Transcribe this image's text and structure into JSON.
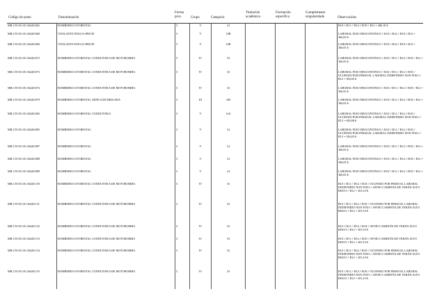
{
  "headers": {
    "codigo": "Código de posto",
    "denominacion": "Denominación",
    "forma": "Forma prov.",
    "grupo": "Grupo",
    "categoria": "Categoría",
    "titulacion": "Titulación académica",
    "formacion": "Formación específica",
    "complemento": "Complemento singularidade",
    "observacions": "Observacións"
  },
  "rows": [
    {
      "codigo": "MR.C59.50.101.36448.862",
      "denominacion": "BOMBEIRO/A FORESTAL",
      "forma": "C",
      "grupo": "V",
      "categoria": "14",
      "obs": "B10 // B11 // B14 // B18 // B12 = 486,18 €."
    },
    {
      "codigo": "MR.C59.50.101.36448.868",
      "denominacion": "VIXILANTE FIXO/A SPDCIF",
      "forma": "C",
      "grupo": "V",
      "categoria": "10B",
      "obs": "LABORAL FIXO-DESCONTINUO // B10 // B14 // B18 // B12 = 366,65 €."
    },
    {
      "codigo": "MR.C59.50.101.36448.869",
      "denominacion": "VIXILANTE FIXO/A SPDCIF",
      "forma": "C",
      "grupo": "V",
      "categoria": "10B",
      "obs": "LABORAL FIXO-DESCONTINUO // B10 // B14 // B18 // B12 = 366,65 €."
    },
    {
      "codigo": "MR.C59.50.101.36448.872",
      "denominacion": "BOMBEIRO/A FORESTAL CONDUTOR/A DE MOTOBOMBA",
      "forma": "C",
      "grupo": "IV",
      "categoria": "33",
      "obs": "LABORAL FIXO-DESCONTINUO // B10 // B11 // B14 // B18 // B12 = 366,65 €."
    },
    {
      "codigo": "MR.C59.50.101.36448.873",
      "denominacion": "BOMBEIRO/A FORESTAL CONDUTOR/A DE MOTOBOMBA",
      "forma": "C",
      "grupo": "IV",
      "categoria": "33",
      "obs": "LABORAL FIXO-DESCONTINUO // B10 // B11 // B14 // B18 // OCUPADO POR PERSOAL LABORAL INDEFINIDO NON FIXO // B12 = 384,65 €."
    },
    {
      "codigo": "MR.C59.50.101.36448.874",
      "denominacion": "BOMBEIRO/A FORESTAL CONDUTOR/A DE MOTOBOMBA",
      "forma": "C",
      "grupo": "IV",
      "categoria": "33",
      "obs": "LABORAL FIXO-DESCONTINUO // B10 // B11 // B14 // B18 // B12 = 366,65 €."
    },
    {
      "codigo": "MR.C59.50.101.36448.879",
      "denominacion": "BOMBEIRO/A FORESTAL XEFE/A DE BRIGADA",
      "forma": "C",
      "grupo": "III",
      "categoria": "100",
      "obs": "LABORAL FIXO-DESCONTINUO // B10 // B11 // B14 // B18 // B12 = 366,65 €."
    },
    {
      "codigo": "MR.C59.50.101.36448.882",
      "denominacion": "BOMBEIRO/A FORESTAL CONDUTOR/A",
      "forma": "C",
      "grupo": "V",
      "categoria": "14A",
      "obs": "LABORAL FIXO-DESCONTINUO // B10 // B11 // B14 // B18 // OCUPADO POR PERSOAL LABORAL INDEFINIDO NON FIXO // B12 = 469,68 €."
    },
    {
      "codigo": "MR.C59.50.101.36448.885",
      "denominacion": "BOMBEIRO/A FORESTAL",
      "forma": "C",
      "grupo": "V",
      "categoria": "14",
      "obs": "LABORAL FIXO-DESCONTINUO // B10 // B11 // B14 // B18 // OCUPADO POR PERSOAL LABORAL INDEFINIDO NON FIXO // B12 = 384,65 €."
    },
    {
      "codigo": "MR.C59.50.101.36448.887",
      "denominacion": "BOMBEIRO/A FORESTAL",
      "forma": "C",
      "grupo": "V",
      "categoria": "14",
      "obs": "LABORAL FIXO-DESCONTINUO // B10 // B11 // B14 // B18 // B12 = 366,65 €."
    },
    {
      "codigo": "MR.C59.50.101.36448.888",
      "denominacion": "BOMBEIRO/A FORESTAL",
      "forma": "C",
      "grupo": "V",
      "categoria": "14",
      "obs": "LABORAL FIXO-DESCONTINUO // B10 // B11 // B14 // B18 // B12 = 366,65 €."
    },
    {
      "codigo": "MR.C59.50.101.36448.889",
      "denominacion": "BOMBEIRO/A FORESTAL",
      "forma": "C",
      "grupo": "V",
      "categoria": "14",
      "obs": "LABORAL FIXO-DESCONTINUO // B10 // B11 // B14 // B18 // B12 = 366,65 €."
    },
    {
      "codigo": "MR.C59.50.101.36448.150",
      "denominacion": "BOMBEIRO/A FORESTAL CONDUTOR/A DE MOTOBOMBA",
      "forma": "C",
      "grupo": "IV",
      "categoria": "33",
      "obs": "B10 // B11 // B14 // B18 // OCUPADO POR PERSOAL LABORAL INDEFINIDO NON FIXO // APOIO CAMPAÑA DE VERÁN ALTO RISCO // B12 = 203,10 €."
    },
    {
      "codigo": "MR.C59.50.101.36448.151",
      "denominacion": "BOMBEIRO/A FORESTAL CONDUTOR/A DE MOTOBOMBA",
      "forma": "C",
      "grupo": "IV",
      "categoria": "33",
      "obs": "B10 // B11 // B14 // B18 // OCUPADO POR PERSOAL LABORAL INDEFINIDO NON FIXO // APOIO CAMPAÑA DE VERÁN ALTO RISCO // B12 = 203,10 €."
    },
    {
      "codigo": "MR.C59.50.101.36448.152",
      "denominacion": "BOMBEIRO/A FORESTAL CONDUTOR/A DE MOTOBOMBA",
      "forma": "C",
      "grupo": "IV",
      "categoria": "33",
      "obs": "B10 // B11 // B14 // B18 // APOIO CAMPAÑA DE VERÁN ALTO RISCO // B12 = 203,10 €."
    },
    {
      "codigo": "MR.C59.50.101.36448.153",
      "denominacion": "BOMBEIRO/A FORESTAL CONDUTOR/A DE MOTOBOMBA",
      "forma": "C",
      "grupo": "IV",
      "categoria": "33",
      "obs": "B10 // B11 // B14 // B18 // APOIO CAMPAÑA DE VERÁN ALTO RISCO // B12 = 203,10 €."
    },
    {
      "codigo": "MR.C59.50.101.36448.154",
      "denominacion": "BOMBEIRO/A FORESTAL CONDUTOR/A DE MOTOBOMBA",
      "forma": "C",
      "grupo": "IV",
      "categoria": "33",
      "obs": "B10 // B11 // B14 // B18 // OCUPADO POR PERSOAL LABORAL INDEFINIDO NON FIXO // APOIO CAMPAÑA DE VERÁN ALTO RISCO // B12 = 203,10 €."
    },
    {
      "codigo": "MR.C59.50.101.36448.155",
      "denominacion": "BOMBEIRO/A FORESTAL CONDUTOR/A DE MOTOBOMBA",
      "forma": "C",
      "grupo": "IV",
      "categoria": "33",
      "obs": "B10 // B11 // B14 // B18 // OCUPADO POR PERSOAL LABORAL INDEFINIDO NON FIXO // APOIO CAMPAÑA DE VERÁN ALTO RISCO // B12 = 203,10 €."
    }
  ]
}
